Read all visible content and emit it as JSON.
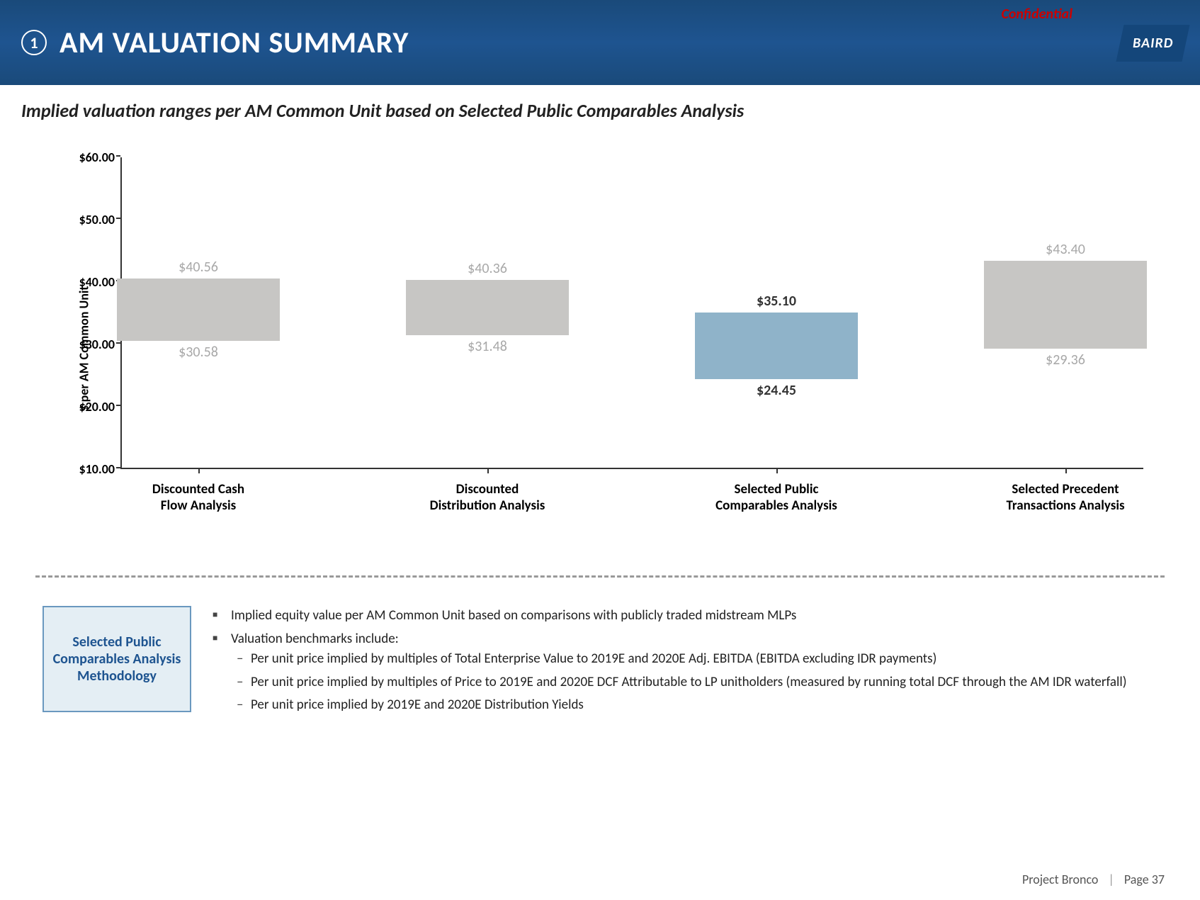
{
  "header": {
    "number": "1",
    "title": "AM VALUATION SUMMARY",
    "confidential": "Confidential",
    "logo": "BAIRD"
  },
  "subtitle": "Implied valuation ranges per AM Common Unit based on Selected Public Comparables Analysis",
  "chart": {
    "type": "floating-bar",
    "ylabel": "$ per AM Common Unit",
    "ylim": [
      10,
      60
    ],
    "ytick_step": 10,
    "yticks": [
      "$10.00",
      "$20.00",
      "$30.00",
      "$40.00",
      "$50.00",
      "$60.00"
    ],
    "background_color": "#ffffff",
    "default_bar_color": "#c7c6c4",
    "highlight_bar_color": "#8fb3c9",
    "label_fontsize": 20,
    "label_color_muted": "#a8a8a8",
    "label_color_strong": "#333333",
    "bars": [
      {
        "category": "Discounted Cash\nFlow Analysis",
        "low": 30.58,
        "high": 40.56,
        "low_label": "$30.58",
        "high_label": "$40.56",
        "highlighted": false
      },
      {
        "category": "Discounted\nDistribution Analysis",
        "low": 31.48,
        "high": 40.36,
        "low_label": "$31.48",
        "high_label": "$40.36",
        "highlighted": false
      },
      {
        "category": "Selected Public\nComparables Analysis",
        "low": 24.45,
        "high": 35.1,
        "low_label": "$24.45",
        "high_label": "$35.10",
        "highlighted": true
      },
      {
        "category": "Selected Precedent\nTransactions Analysis",
        "low": 29.36,
        "high": 43.4,
        "low_label": "$29.36",
        "high_label": "$43.40",
        "highlighted": false
      }
    ]
  },
  "methodology": {
    "box_title": "Selected Public Comparables Analysis Methodology",
    "bullets": [
      "Implied equity value per AM Common Unit based on comparisons with publicly traded midstream MLPs",
      "Valuation benchmarks include:"
    ],
    "sub_bullets": [
      "Per unit price implied by multiples of Total Enterprise Value to 2019E and 2020E Adj. EBITDA (EBITDA excluding IDR payments)",
      "Per unit price implied by multiples of Price to 2019E and 2020E DCF Attributable to LP unitholders (measured by running total DCF through the AM IDR waterfall)",
      "Per unit price implied by 2019E and 2020E Distribution Yields"
    ]
  },
  "footer": {
    "project": "Project Bronco",
    "page": "Page 37"
  },
  "colors": {
    "header_bg": "#1e5490",
    "accent": "#1e5490",
    "confidential": "#cc0000"
  }
}
